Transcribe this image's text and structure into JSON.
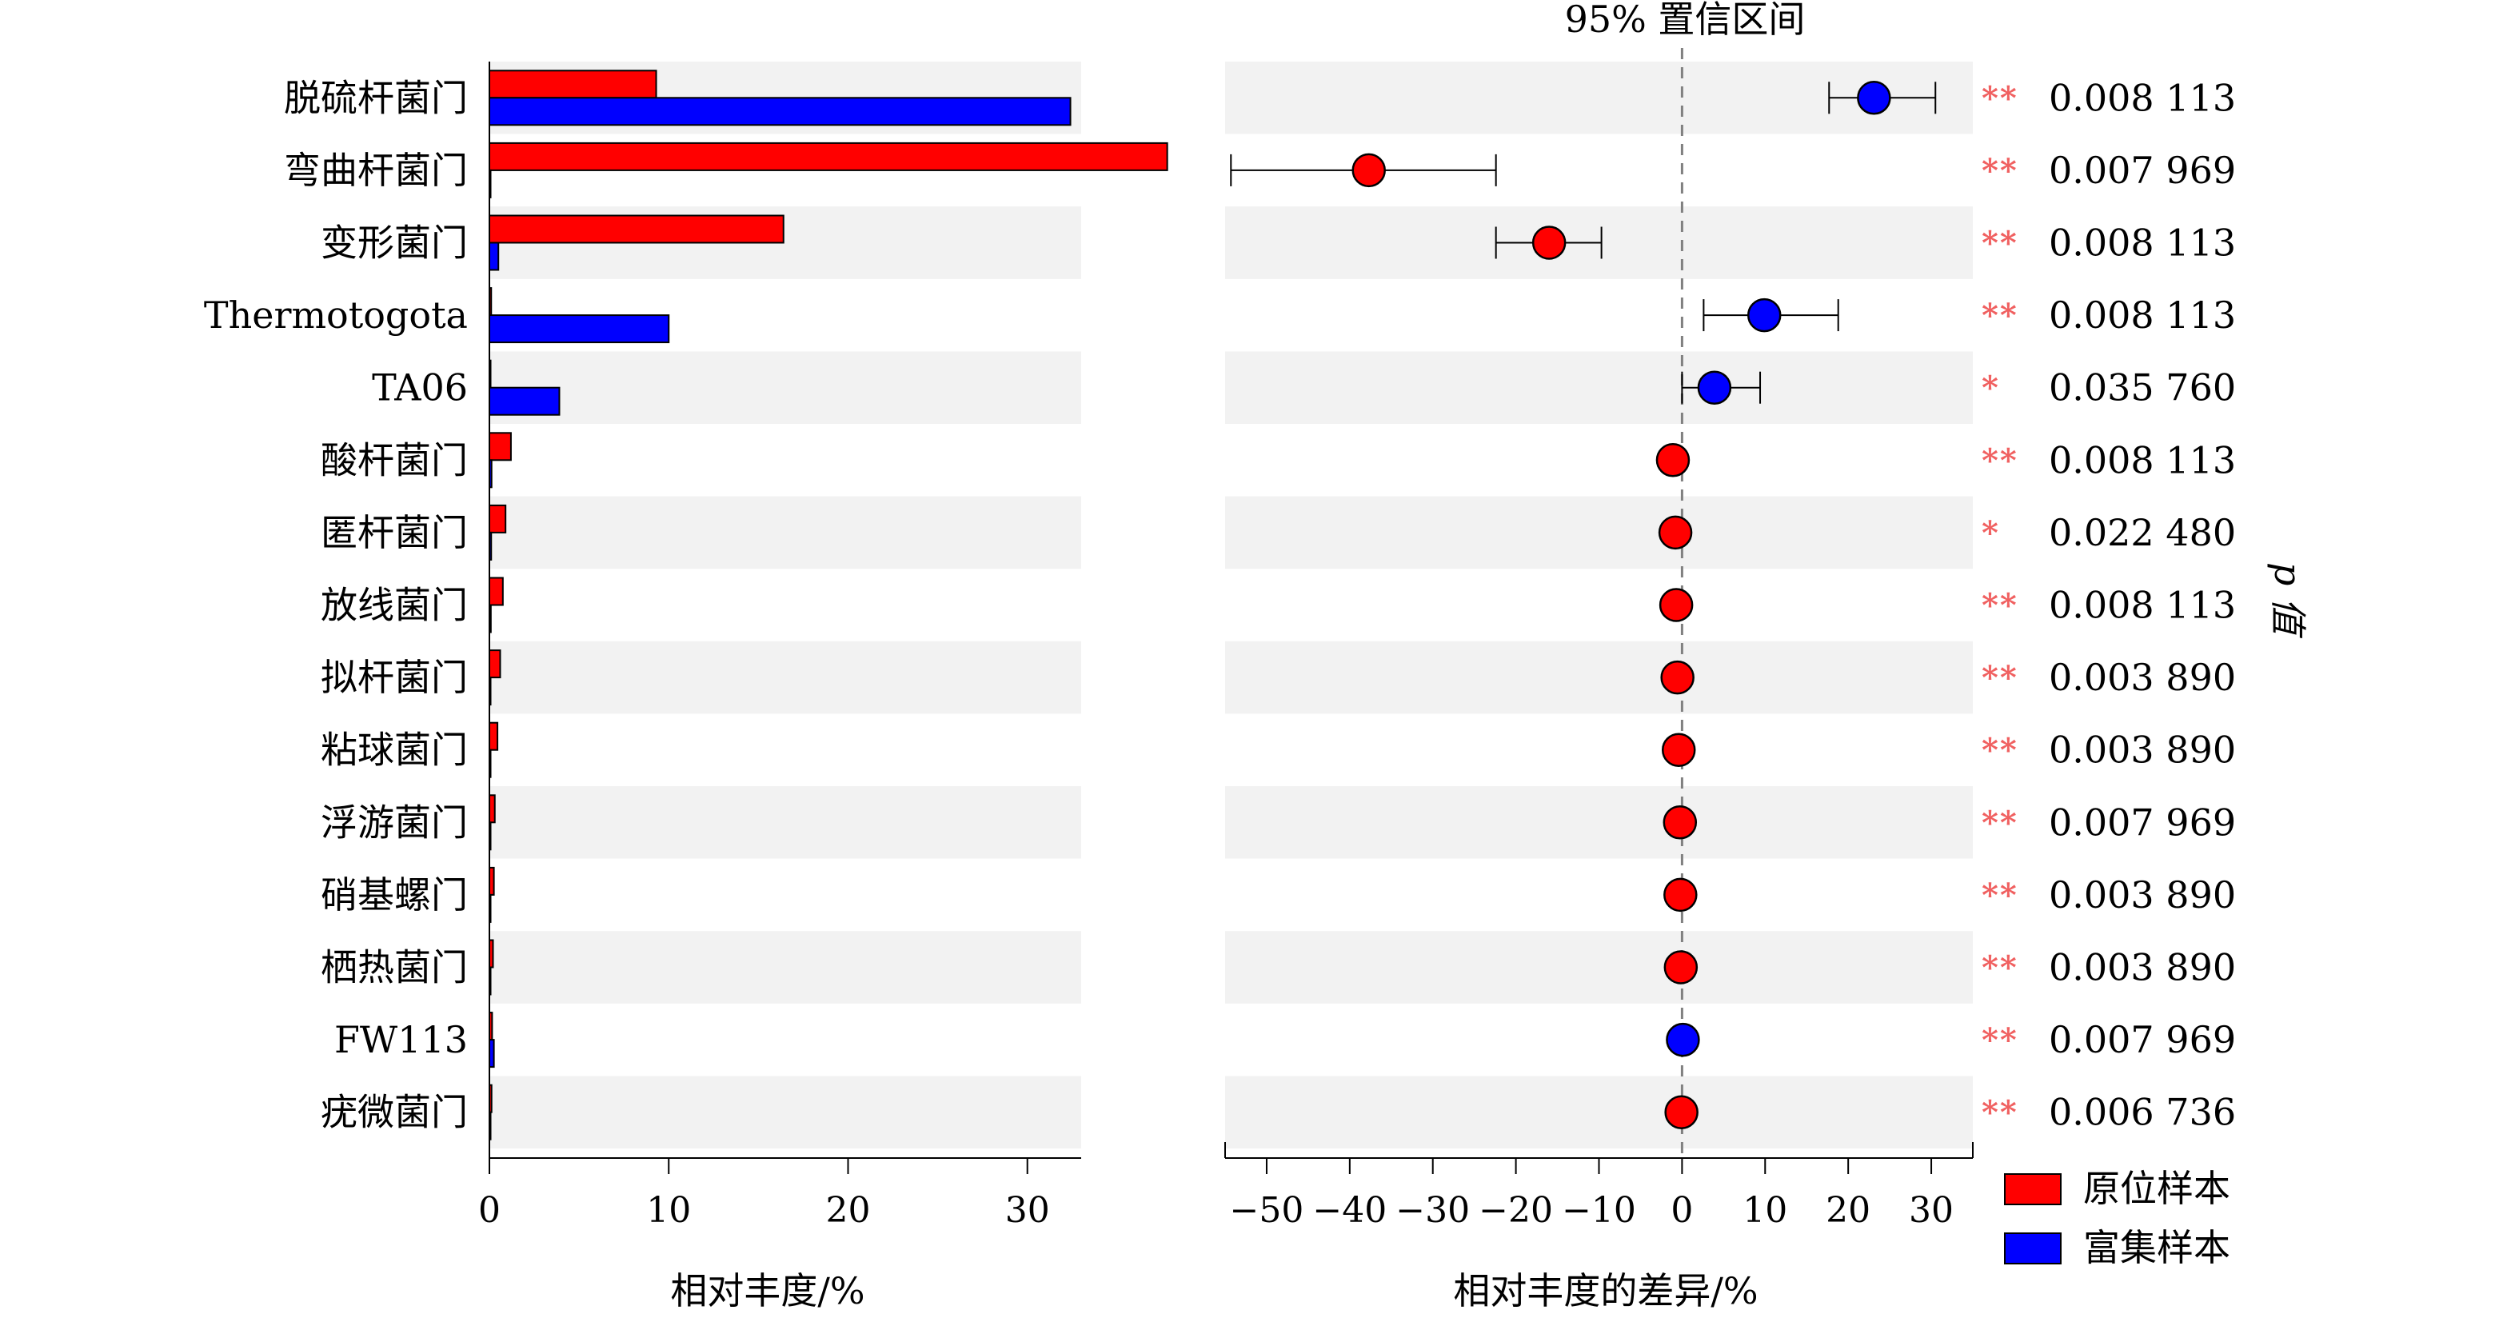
{
  "chart_data": [
    {
      "type": "bar",
      "xlabel": "相对丰度/%",
      "xlim": [
        0,
        33
      ],
      "xticks": [
        0,
        10,
        20,
        30
      ],
      "categories": [
        "脱硫杆菌门",
        "弯曲杆菌门",
        "变形菌门",
        "Thermotogota",
        "TA06",
        "酸杆菌门",
        "匿杆菌门",
        "放线菌门",
        "拟杆菌门",
        "粘球菌门",
        "浮游菌门",
        "硝基螺门",
        "栖热菌门",
        "FW113",
        "疣微菌门"
      ],
      "series": [
        {
          "name": "原位样本",
          "color": "#ff0000",
          "values": [
            9.3,
            37.8,
            16.4,
            0.1,
            0.05,
            1.2,
            0.9,
            0.75,
            0.6,
            0.45,
            0.3,
            0.25,
            0.2,
            0.15,
            0.12
          ]
        },
        {
          "name": "富集样本",
          "color": "#0000ff",
          "values": [
            32.4,
            0.05,
            0.5,
            10.0,
            3.9,
            0.12,
            0.1,
            0.08,
            0.06,
            0.05,
            0.05,
            0.05,
            0.05,
            0.25,
            0.05
          ]
        }
      ]
    },
    {
      "type": "scatter",
      "title": "95% 置信区间",
      "xlabel": "相对丰度的差异/%",
      "xlim": [
        -55,
        35
      ],
      "xticks": [
        -50,
        -40,
        -30,
        -20,
        -10,
        0,
        10,
        20,
        30
      ],
      "xtick_labels": [
        "−50",
        "−40",
        "−30",
        "−20",
        "−10",
        "0",
        "10",
        "20",
        "30"
      ],
      "right_axis_label": "p 值",
      "points": [
        {
          "diff": 23.1,
          "ci": [
            17.7,
            30.5
          ],
          "color": "#0000ff",
          "stars": "**",
          "p": "0.008 113"
        },
        {
          "diff": -37.7,
          "ci": [
            -54.3,
            -22.4
          ],
          "color": "#ff0000",
          "stars": "**",
          "p": "0.007 969"
        },
        {
          "diff": -16.0,
          "ci": [
            -22.4,
            -9.7
          ],
          "color": "#ff0000",
          "stars": "**",
          "p": "0.008 113"
        },
        {
          "diff": 9.9,
          "ci": [
            2.6,
            18.8
          ],
          "color": "#0000ff",
          "stars": "**",
          "p": "0.008 113"
        },
        {
          "diff": 3.9,
          "ci": [
            0.0,
            9.4
          ],
          "color": "#0000ff",
          "stars": "*",
          "p": "0.035 760"
        },
        {
          "diff": -1.1,
          "ci": [
            -1.6,
            -0.6
          ],
          "color": "#ff0000",
          "stars": "**",
          "p": "0.008 113"
        },
        {
          "diff": -0.8,
          "ci": [
            -1.2,
            -0.4
          ],
          "color": "#ff0000",
          "stars": "*",
          "p": "0.022 480"
        },
        {
          "diff": -0.7,
          "ci": [
            -1.0,
            -0.4
          ],
          "color": "#ff0000",
          "stars": "**",
          "p": "0.008 113"
        },
        {
          "diff": -0.55,
          "ci": [
            -0.8,
            -0.3
          ],
          "color": "#ff0000",
          "stars": "**",
          "p": "0.003 890"
        },
        {
          "diff": -0.4,
          "ci": [
            -0.6,
            -0.2
          ],
          "color": "#ff0000",
          "stars": "**",
          "p": "0.003 890"
        },
        {
          "diff": -0.25,
          "ci": [
            -0.4,
            -0.1
          ],
          "color": "#ff0000",
          "stars": "**",
          "p": "0.007 969"
        },
        {
          "diff": -0.2,
          "ci": [
            -0.3,
            -0.1
          ],
          "color": "#ff0000",
          "stars": "**",
          "p": "0.003 890"
        },
        {
          "diff": -0.15,
          "ci": [
            -0.25,
            -0.05
          ],
          "color": "#ff0000",
          "stars": "**",
          "p": "0.003 890"
        },
        {
          "diff": 0.1,
          "ci": [
            0.05,
            0.2
          ],
          "color": "#0000ff",
          "stars": "**",
          "p": "0.007 969"
        },
        {
          "diff": -0.07,
          "ci": [
            -0.12,
            -0.02
          ],
          "color": "#ff0000",
          "stars": "**",
          "p": "0.006 736"
        }
      ]
    }
  ],
  "legend": [
    {
      "label": "原位样本",
      "color": "#ff0000"
    },
    {
      "label": "富集样本",
      "color": "#0000ff"
    }
  ],
  "colors": {
    "row_band": "#f2f2f2",
    "star": "#f06060",
    "zero_line": "#808080"
  }
}
